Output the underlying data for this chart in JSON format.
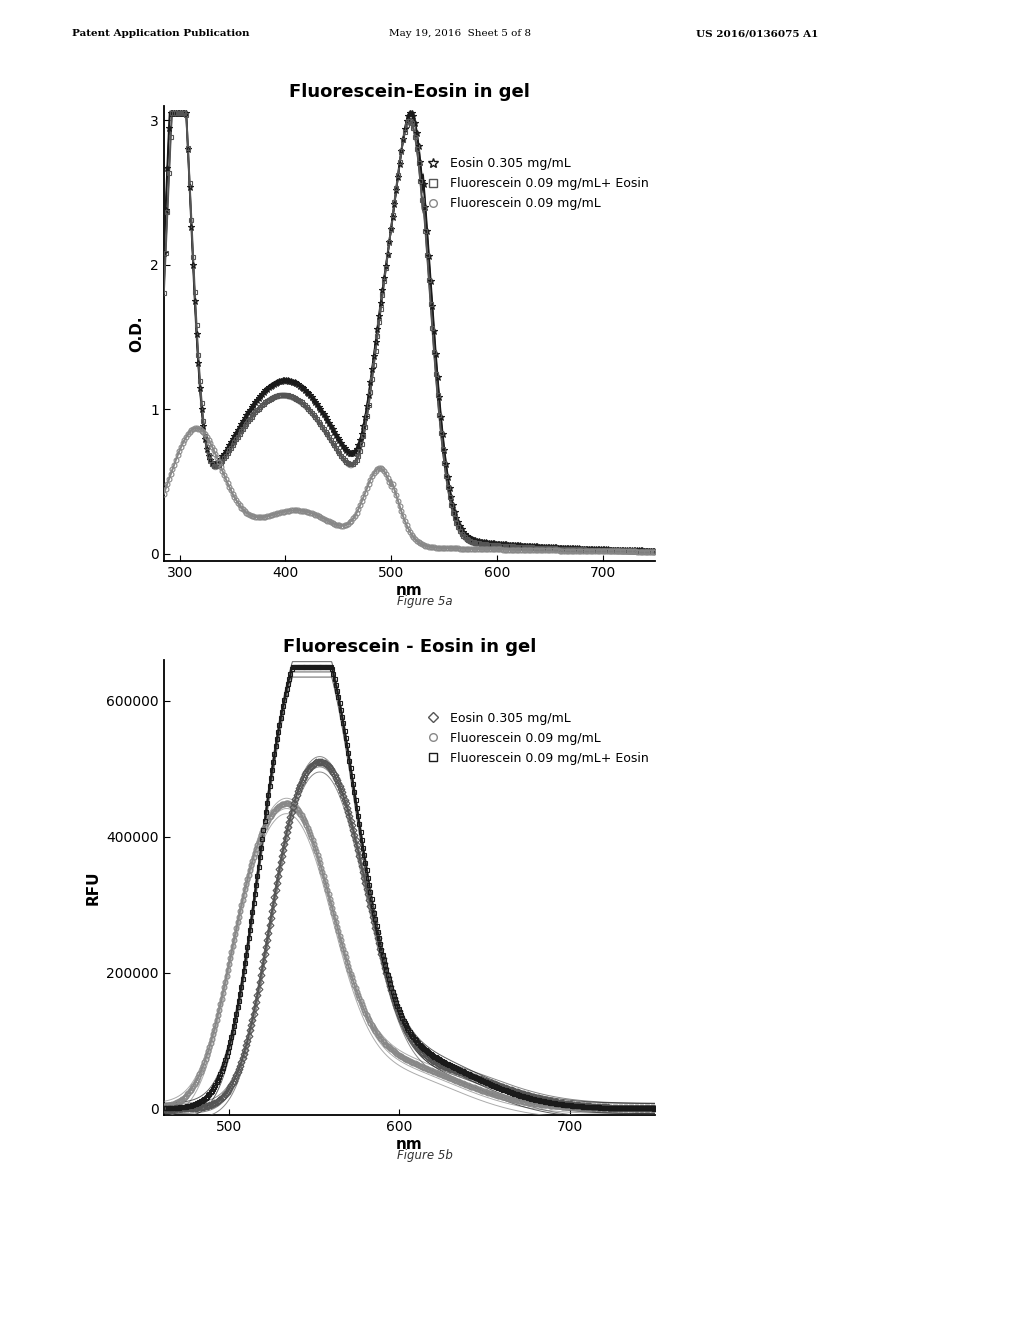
{
  "fig_width": 10.24,
  "fig_height": 13.2,
  "bg_color": "#ffffff",
  "header_left": "Patent Application Publication",
  "header_mid": "May 19, 2016  Sheet 5 of 8",
  "header_right": "US 2016/0136075 A1",
  "plot1": {
    "title": "Fluorescein-Eosin in gel",
    "xlabel": "nm",
    "ylabel": "O.D.",
    "xlim": [
      285,
      750
    ],
    "ylim": [
      -0.05,
      3.1
    ],
    "yticks": [
      0,
      1,
      2,
      3
    ],
    "xticks": [
      300,
      400,
      500,
      600,
      700
    ],
    "legend": [
      {
        "label": "Eosin 0.305 mg/mL",
        "marker": "*"
      },
      {
        "label": "Fluorescein 0.09 mg/mL+ Eosin",
        "marker": "s"
      },
      {
        "label": "Fluorescein 0.09 mg/mL",
        "marker": "o"
      }
    ],
    "figure_caption": "Figure 5a"
  },
  "plot2": {
    "title": "Fluorescein - Eosin in gel",
    "xlabel": "nm",
    "ylabel": "RFU",
    "xlim": [
      462,
      750
    ],
    "ylim": [
      -10000,
      660000
    ],
    "yticks": [
      0,
      200000,
      400000,
      600000
    ],
    "xticks": [
      500,
      600,
      700
    ],
    "legend": [
      {
        "label": "Eosin 0.305 mg/mL",
        "marker": "*"
      },
      {
        "label": "Fluorescein 0.09 mg/mL",
        "marker": "o"
      },
      {
        "label": "Fluorescein 0.09 mg/mL+ Eosin",
        "marker": "s"
      }
    ],
    "figure_caption": "Figure 5b"
  }
}
